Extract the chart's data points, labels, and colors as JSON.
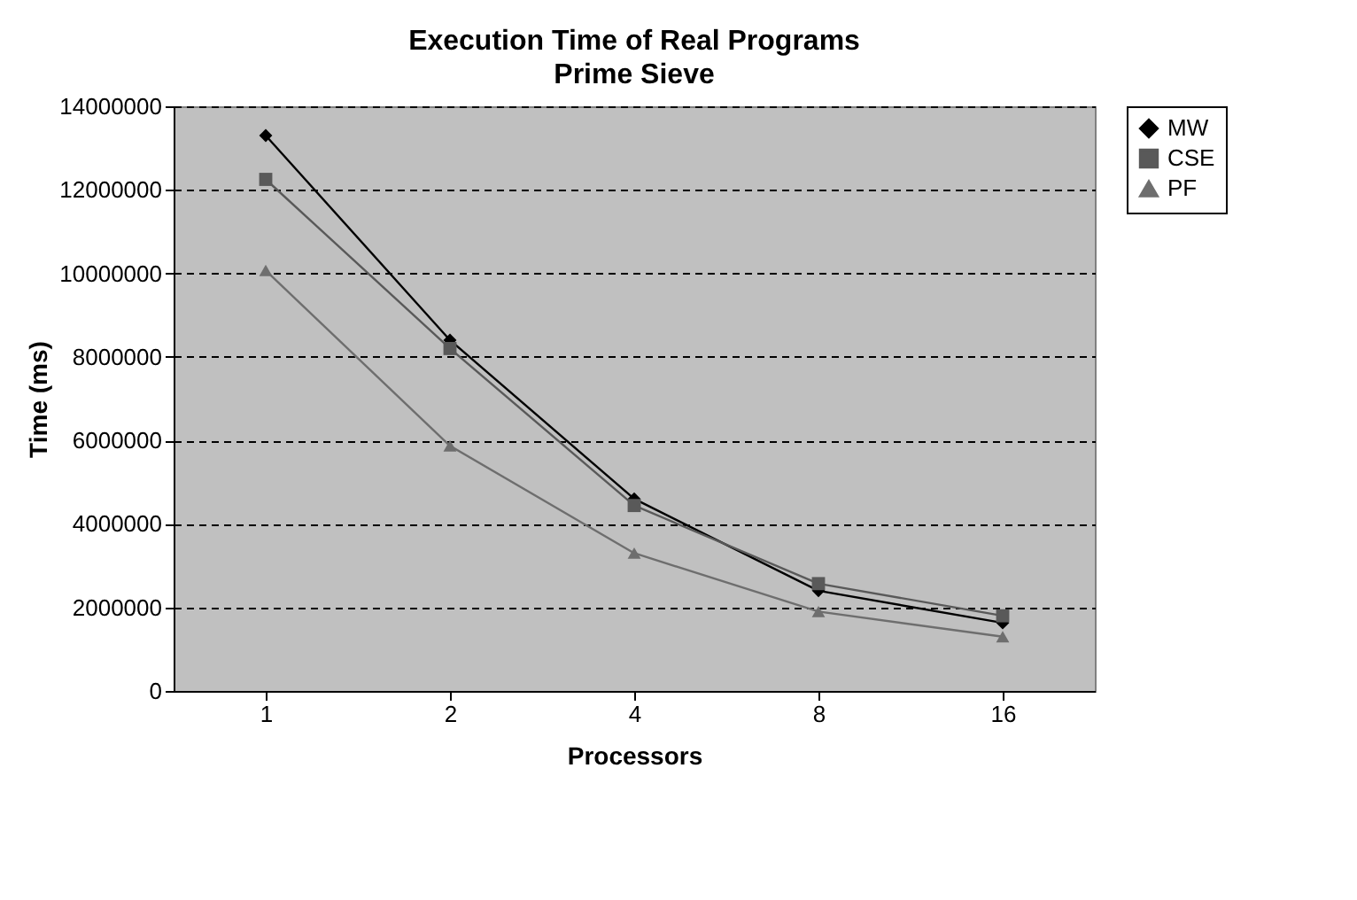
{
  "chart_data": {
    "type": "line",
    "title": "Execution Time of Real Programs",
    "subtitle": "Prime Sieve",
    "xlabel": "Processors",
    "ylabel": "Time (ms)",
    "categories": [
      "1",
      "2",
      "4",
      "8",
      "16"
    ],
    "series": [
      {
        "name": "MW",
        "color": "#000000",
        "marker": "diamond",
        "values": [
          13300000,
          8400000,
          4600000,
          2400000,
          1630000
        ]
      },
      {
        "name": "CSE",
        "color": "#595959",
        "marker": "square",
        "values": [
          12250000,
          8200000,
          4440000,
          2570000,
          1800000
        ]
      },
      {
        "name": "PF",
        "color": "#6e6e6e",
        "marker": "triangle",
        "values": [
          10070000,
          5870000,
          3300000,
          1900000,
          1300000
        ]
      }
    ],
    "ylim": [
      0,
      14000000
    ],
    "yticks": [
      0,
      2000000,
      4000000,
      6000000,
      8000000,
      10000000,
      12000000,
      14000000
    ],
    "grid": "y",
    "legend": "right",
    "line_style": "solid"
  }
}
